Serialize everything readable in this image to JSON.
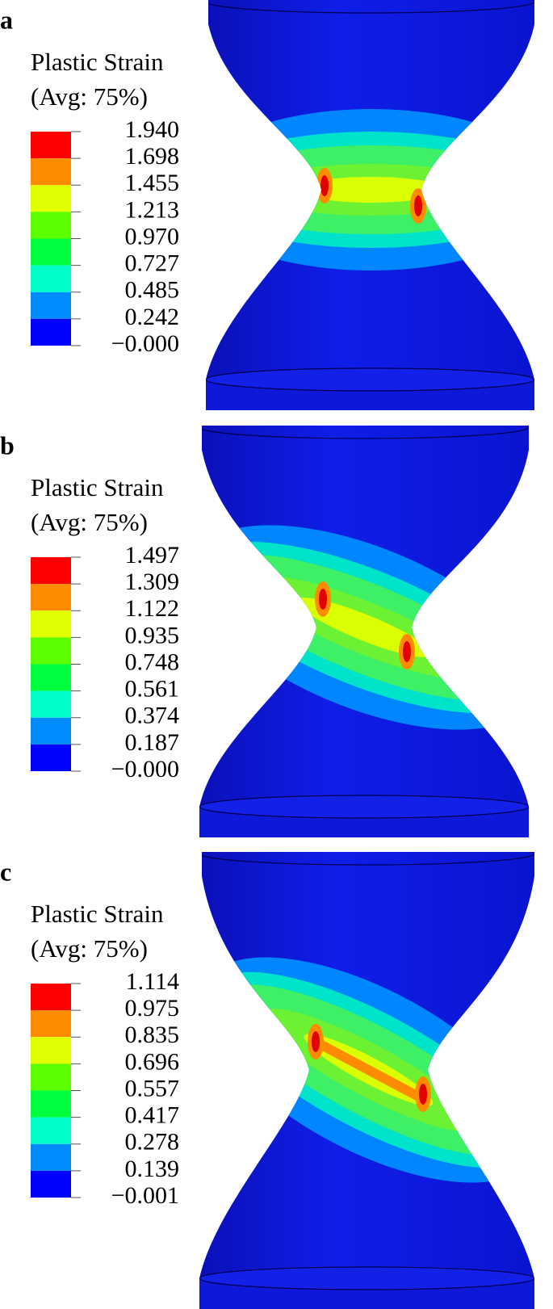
{
  "panels": [
    {
      "label": "a",
      "legend": {
        "title": "Plastic Strain",
        "subtitle": "(Avg: 75%)",
        "levels": [
          "1.940",
          "1.698",
          "1.455",
          "1.213",
          "0.970",
          "0.727",
          "0.485",
          "0.242",
          "−0.000"
        ]
      }
    },
    {
      "label": "b",
      "legend": {
        "title": "Plastic Strain",
        "subtitle": "(Avg: 75%)",
        "levels": [
          "1.497",
          "1.309",
          "1.122",
          "0.935",
          "0.748",
          "0.561",
          "0.374",
          "0.187",
          "−0.000"
        ]
      }
    },
    {
      "label": "c",
      "legend": {
        "title": "Plastic Strain",
        "subtitle": "(Avg: 75%)",
        "levels": [
          "1.114",
          "0.975",
          "0.835",
          "0.696",
          "0.557",
          "0.417",
          "0.278",
          "0.139",
          "−0.001"
        ]
      }
    }
  ]
}
